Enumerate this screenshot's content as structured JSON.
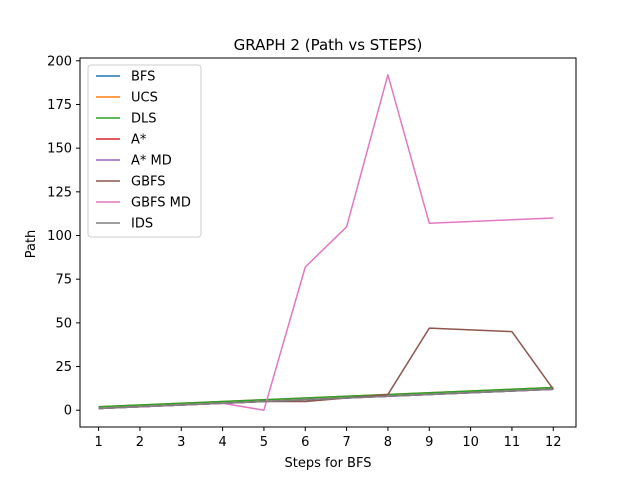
{
  "chart_data": {
    "type": "line",
    "title": "GRAPH 2 (Path vs STEPS)",
    "xlabel": "Steps for BFS",
    "ylabel": "Path",
    "x": [
      1,
      2,
      3,
      4,
      5,
      6,
      7,
      8,
      9,
      10,
      11,
      12
    ],
    "xticks": [
      1,
      2,
      3,
      4,
      5,
      6,
      7,
      8,
      9,
      10,
      11,
      12
    ],
    "xtick_labels": [
      "1",
      "2",
      "3",
      "4",
      "5",
      "6",
      "7",
      "8",
      "9",
      "10",
      "11",
      "12"
    ],
    "xlim": [
      0.55,
      12.55
    ],
    "yticks": [
      0,
      25,
      50,
      75,
      100,
      125,
      150,
      175,
      200
    ],
    "ytick_labels": [
      "0",
      "25",
      "50",
      "75",
      "100",
      "125",
      "150",
      "175",
      "200"
    ],
    "ylim": [
      -9.6,
      201.6
    ],
    "grid": false,
    "legend_position": "top-left",
    "series": [
      {
        "name": "BFS",
        "color": "#1f77b4",
        "x": [
          1,
          2,
          3,
          4,
          5,
          6,
          7,
          8,
          9,
          11,
          12
        ],
        "values": [
          1,
          2,
          3,
          4,
          5,
          6,
          7,
          8,
          9,
          11,
          12
        ]
      },
      {
        "name": "UCS",
        "color": "#ff7f0e",
        "x": [
          1,
          2,
          3,
          4,
          5,
          6,
          7,
          8,
          9,
          11,
          12
        ],
        "values": [
          2,
          3,
          4,
          5,
          6,
          7,
          8,
          9,
          10,
          12,
          13
        ]
      },
      {
        "name": "DLS",
        "color": "#2ca02c",
        "x": [
          1,
          2,
          3,
          4,
          5,
          6,
          7,
          8,
          9,
          11,
          12
        ],
        "values": [
          2,
          3,
          4,
          5,
          6,
          7,
          8,
          9,
          10,
          12,
          13
        ]
      },
      {
        "name": "A*",
        "color": "#d62728",
        "x": [
          1,
          2,
          3,
          4,
          5,
          6,
          7,
          8,
          9,
          11,
          12
        ],
        "values": [
          1,
          2,
          3,
          4,
          5,
          6,
          7,
          8,
          9,
          11,
          12
        ]
      },
      {
        "name": "A* MD",
        "color": "#9467bd",
        "x": [
          1,
          2,
          3,
          4,
          5,
          6,
          7,
          8,
          9,
          11,
          12
        ],
        "values": [
          1,
          2,
          3,
          4,
          5,
          6,
          7,
          8,
          9,
          11,
          12
        ]
      },
      {
        "name": "GBFS",
        "color": "#8c564b",
        "x": [
          1,
          2,
          3,
          4,
          5,
          6,
          7,
          8,
          9,
          11,
          12
        ],
        "values": [
          1,
          2,
          3,
          4,
          5,
          5,
          7,
          9,
          47,
          45,
          12
        ]
      },
      {
        "name": "GBFS MD",
        "color": "#e377c2",
        "x": [
          1,
          2,
          3,
          4,
          5,
          6,
          7,
          8,
          9,
          11,
          12
        ],
        "values": [
          1,
          2,
          3,
          4,
          0,
          82,
          105,
          192,
          107,
          109,
          110
        ]
      },
      {
        "name": "IDS",
        "color": "#7f7f7f",
        "x": [
          1,
          2,
          3,
          4,
          5,
          6,
          7,
          8,
          9,
          11,
          12
        ],
        "values": [
          1,
          2,
          3,
          4,
          5,
          6,
          7,
          8,
          9,
          11,
          12
        ]
      }
    ]
  }
}
